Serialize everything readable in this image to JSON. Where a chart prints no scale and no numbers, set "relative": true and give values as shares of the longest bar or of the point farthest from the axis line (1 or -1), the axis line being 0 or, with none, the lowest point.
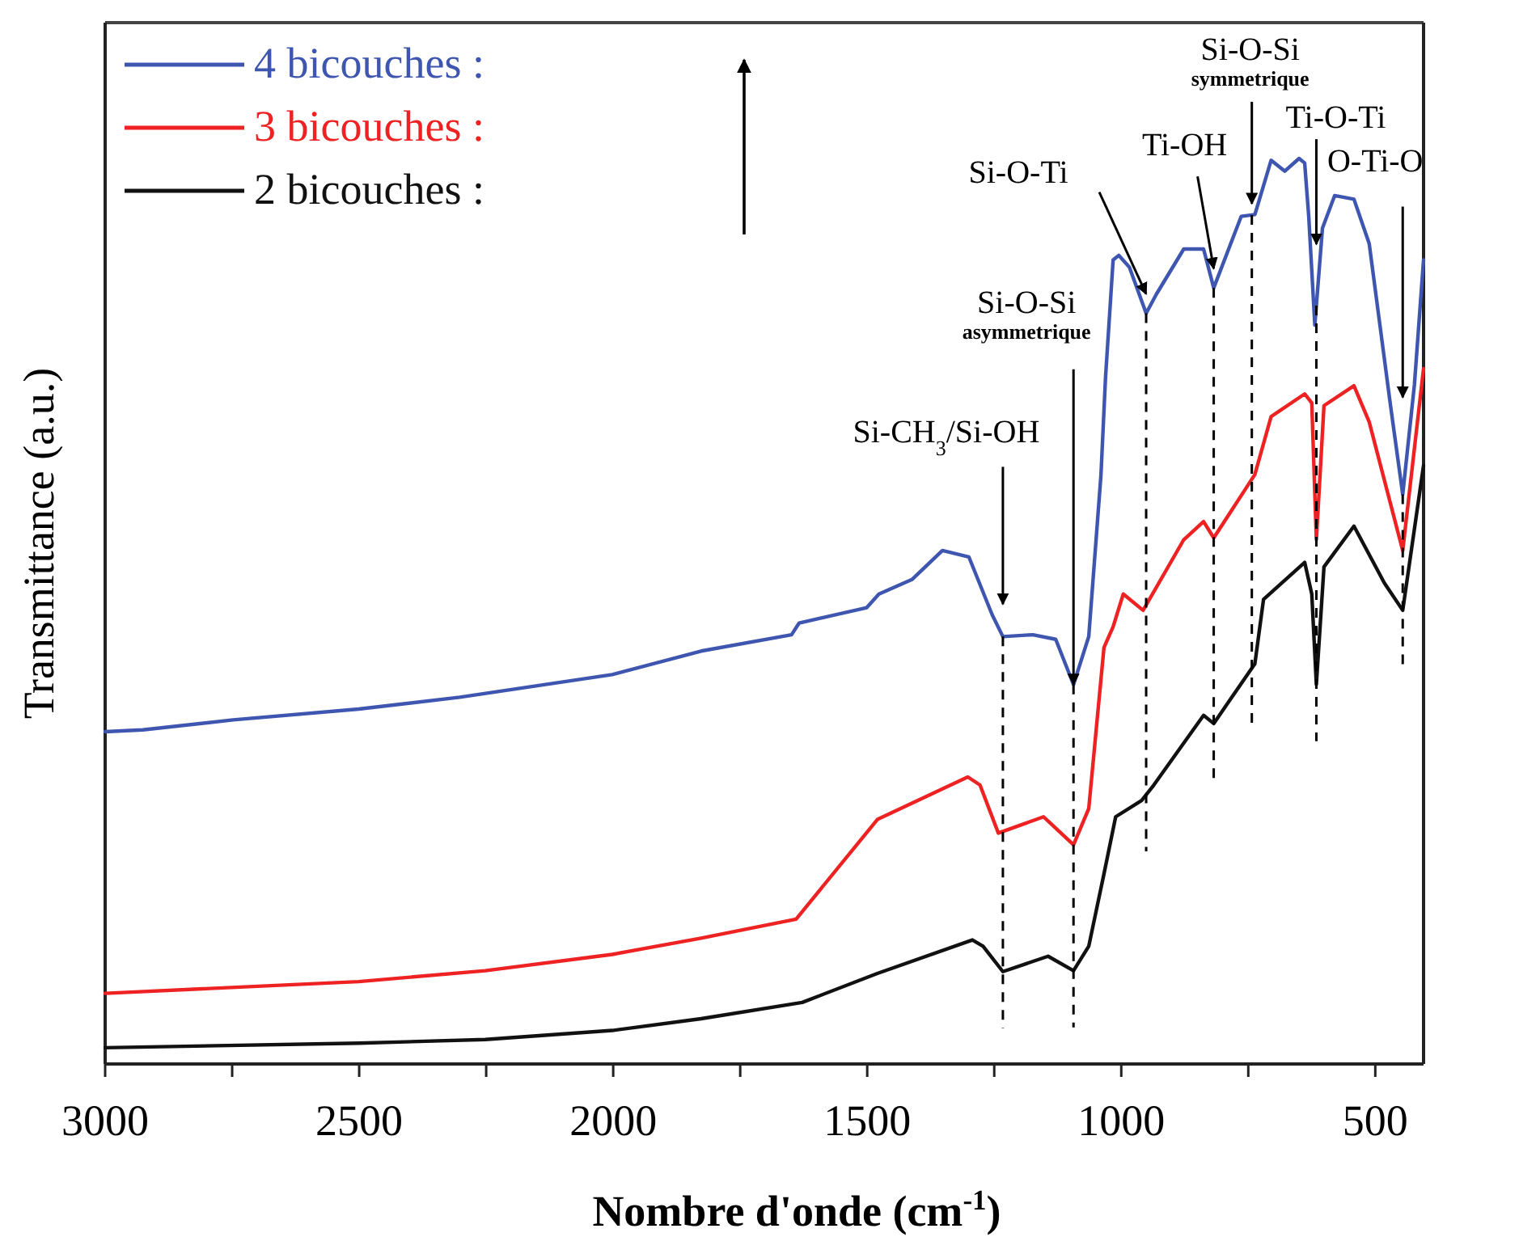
{
  "chart_data": {
    "type": "line",
    "relative": true,
    "xlabel": "Nombre d'onde (cm$^{-1}$)",
    "ylabel": "Transmittance (a.u.)",
    "legend": "top left",
    "grid": false,
    "xlim": [
      3000,
      405
    ],
    "xticks": [
      3000,
      {
        "value": 2750,
        "label": null
      },
      2500,
      {
        "value": 2250,
        "label": null
      },
      2000,
      {
        "value": 1750,
        "label": null
      },
      1500,
      {
        "value": 1250,
        "label": null
      },
      1000,
      {
        "value": 750,
        "label": null
      },
      500
    ],
    "series": [
      {
        "name": "4 bicouches :",
        "color": "#3e56b0",
        "x": [
          3000,
          2926,
          2748,
          2501,
          2302,
          2002,
          1827,
          1649,
          1634,
          1501,
          1477,
          1412,
          1352,
          1300,
          1254,
          1233,
          1174,
          1129,
          1094,
          1064,
          1040,
          1031,
          1016,
          1005,
          984,
          951,
          931,
          877,
          838,
          818,
          764,
          737,
          705,
          678,
          650,
          639,
          631,
          619,
          604,
          580,
          542,
          512,
          470,
          446,
          423,
          405
        ],
        "values": [
          0.367,
          0.369,
          0.38,
          0.392,
          0.405,
          0.43,
          0.456,
          0.474,
          0.487,
          0.504,
          0.519,
          0.535,
          0.567,
          0.56,
          0.496,
          0.472,
          0.474,
          0.469,
          0.419,
          0.472,
          0.65,
          0.758,
          0.888,
          0.893,
          0.88,
          0.829,
          0.85,
          0.9,
          0.9,
          0.857,
          0.936,
          0.938,
          0.998,
          0.986,
          1.0,
          0.995,
          0.936,
          0.816,
          0.923,
          0.959,
          0.955,
          0.906,
          0.727,
          0.629,
          0.75,
          0.888
        ]
      },
      {
        "name": "3 bicouches :",
        "color": "#ee2222",
        "x": [
          3000,
          2501,
          2252,
          2002,
          1827,
          1640,
          1480,
          1302,
          1278,
          1242,
          1153,
          1094,
          1064,
          1046,
          1034,
          1016,
          996,
          957,
          877,
          838,
          818,
          737,
          705,
          639,
          625,
          616,
          601,
          542,
          512,
          446,
          405
        ],
        "values": [
          0.078,
          0.091,
          0.103,
          0.121,
          0.139,
          0.16,
          0.27,
          0.317,
          0.308,
          0.255,
          0.273,
          0.242,
          0.282,
          0.389,
          0.46,
          0.483,
          0.519,
          0.501,
          0.579,
          0.599,
          0.581,
          0.651,
          0.715,
          0.74,
          0.73,
          0.579,
          0.727,
          0.749,
          0.709,
          0.567,
          0.768
        ]
      },
      {
        "name": "2 bicouches :",
        "color": "#111111",
        "x": [
          3000,
          2501,
          2252,
          2002,
          1827,
          1628,
          1480,
          1293,
          1272,
          1233,
          1144,
          1094,
          1064,
          1034,
          1011,
          960,
          936,
          838,
          818,
          737,
          720,
          639,
          625,
          616,
          601,
          542,
          482,
          446,
          405
        ],
        "values": [
          0.018,
          0.023,
          0.027,
          0.037,
          0.05,
          0.068,
          0.1,
          0.137,
          0.13,
          0.102,
          0.119,
          0.103,
          0.13,
          0.21,
          0.273,
          0.291,
          0.308,
          0.385,
          0.376,
          0.442,
          0.513,
          0.554,
          0.519,
          0.419,
          0.549,
          0.594,
          0.531,
          0.501,
          0.661
        ]
      }
    ],
    "ref_lines": [
      {
        "axis": "x",
        "value": 1233,
        "color": "#000000",
        "line_style": "dashed"
      },
      {
        "axis": "x",
        "value": 1094,
        "color": "#000000",
        "line_style": "dashed"
      },
      {
        "axis": "x",
        "value": 951,
        "color": "#000000",
        "line_style": "dashed"
      },
      {
        "axis": "x",
        "value": 818,
        "color": "#000000",
        "line_style": "dashed"
      },
      {
        "axis": "x",
        "value": 743,
        "color": "#000000",
        "line_style": "dashed"
      },
      {
        "axis": "x",
        "value": 616,
        "color": "#000000",
        "line_style": "dashed"
      },
      {
        "axis": "x",
        "value": 446,
        "color": "#000000",
        "line_style": "dashed"
      }
    ],
    "annotations": [
      "Si-CH$_{3}$/Si-OH",
      "Si-O-Si asymmetrique",
      "Si-O-Ti",
      "Ti-OH",
      "Si-O-Si symmetrique",
      "Ti-O-Ti",
      "O-Ti-O"
    ]
  }
}
